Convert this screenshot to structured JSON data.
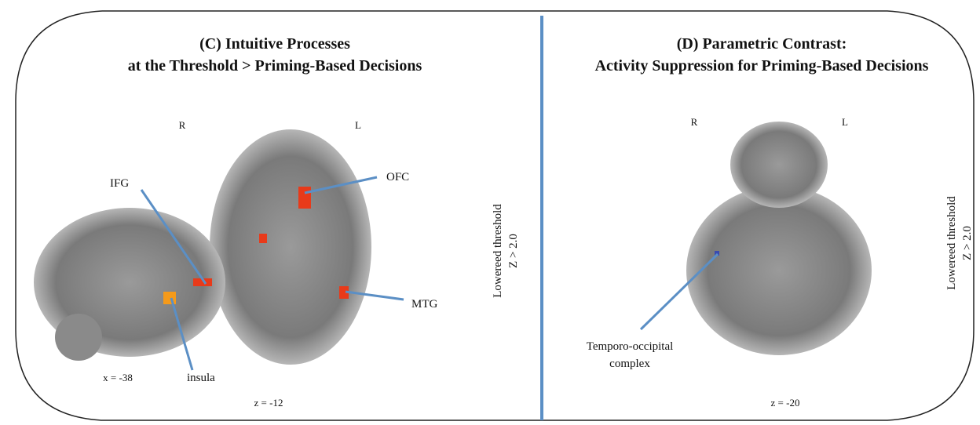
{
  "panels": [
    {
      "title": [
        "(C) Intuitive Processes",
        "at the Threshold > Priming-Based Decisions"
      ],
      "orientation": [
        "R",
        "L"
      ],
      "labels": [
        "IFG",
        "OFC",
        "MTG",
        "insula"
      ],
      "coordinates": [
        "x = -38",
        "z = -12"
      ],
      "threshold": [
        "Lowereed threshold",
        "Z > 2.0"
      ]
    },
    {
      "title": [
        "(D) Parametric Contrast:",
        "Activity Suppression for Priming-Based Decisions"
      ],
      "orientation": [
        "R",
        "L"
      ],
      "labels": [
        "Temporo-occipital",
        "complex"
      ],
      "coordinates": [
        "z = -20"
      ],
      "threshold": [
        "Lowereed threshold",
        "Z > 2.0"
      ]
    }
  ]
}
